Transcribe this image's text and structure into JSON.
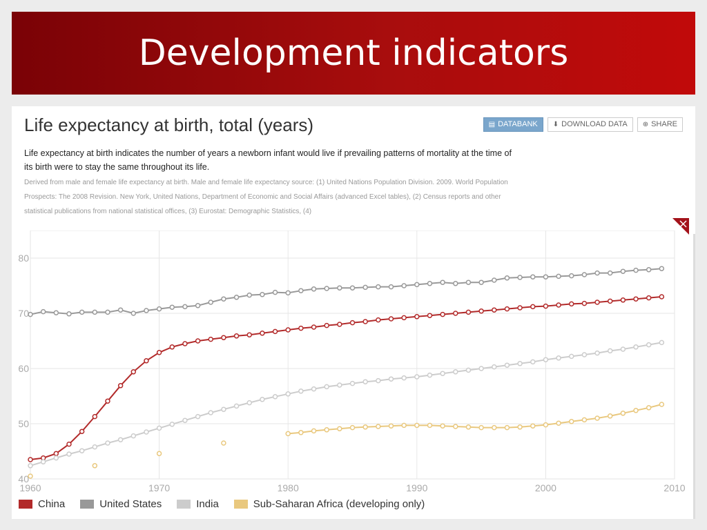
{
  "slide": {
    "title": "Development indicators"
  },
  "panel": {
    "title": "Life expectancy at birth, total (years)",
    "buttons": [
      {
        "label": "DATABANK",
        "icon": "chart-icon"
      },
      {
        "label": "DOWNLOAD DATA",
        "icon": "download-icon"
      },
      {
        "label": "SHARE",
        "icon": "plus-circle-icon"
      }
    ],
    "description": "Life expectancy at birth indicates the number of years a newborn infant would live if prevailing patterns of mortality at the time of its birth were to stay the same throughout its life.",
    "source": "Derived from male and female life expectancy at birth. Male and female life expectancy source: (1) United Nations Population Division. 2009. World Population Prospects: The 2008 Revision. New York, United Nations, Department of Economic and Social Affairs (advanced Excel tables), (2) Census reports and other statistical publications from national statistical offices, (3) Eurostat: Demographic Statistics, (4)"
  },
  "chart_data": {
    "type": "line",
    "title": "",
    "xlabel": "",
    "ylabel": "",
    "xlim": [
      1960,
      2010
    ],
    "ylim": [
      40,
      85
    ],
    "xticks": [
      1960,
      1970,
      1980,
      1990,
      2000,
      2010
    ],
    "yticks": [
      40,
      50,
      60,
      70,
      80
    ],
    "grid": true,
    "legend": "bottom",
    "series": [
      {
        "name": "China",
        "color": "#b22a2a",
        "points": [
          [
            1960,
            43.5
          ],
          [
            1961,
            43.8
          ],
          [
            1962,
            44.6
          ],
          [
            1963,
            46.3
          ],
          [
            1964,
            48.6
          ],
          [
            1965,
            51.3
          ],
          [
            1966,
            54.1
          ],
          [
            1967,
            56.9
          ],
          [
            1968,
            59.4
          ],
          [
            1969,
            61.4
          ],
          [
            1970,
            62.9
          ],
          [
            1971,
            63.9
          ],
          [
            1972,
            64.5
          ],
          [
            1973,
            65.0
          ],
          [
            1974,
            65.3
          ],
          [
            1975,
            65.6
          ],
          [
            1976,
            65.9
          ],
          [
            1977,
            66.1
          ],
          [
            1978,
            66.4
          ],
          [
            1979,
            66.7
          ],
          [
            1980,
            67.0
          ],
          [
            1981,
            67.3
          ],
          [
            1982,
            67.5
          ],
          [
            1983,
            67.8
          ],
          [
            1984,
            68.0
          ],
          [
            1985,
            68.3
          ],
          [
            1986,
            68.5
          ],
          [
            1987,
            68.8
          ],
          [
            1988,
            69.0
          ],
          [
            1989,
            69.2
          ],
          [
            1990,
            69.4
          ],
          [
            1991,
            69.6
          ],
          [
            1992,
            69.8
          ],
          [
            1993,
            70.0
          ],
          [
            1994,
            70.2
          ],
          [
            1995,
            70.4
          ],
          [
            1996,
            70.6
          ],
          [
            1997,
            70.8
          ],
          [
            1998,
            71.0
          ],
          [
            1999,
            71.2
          ],
          [
            2000,
            71.3
          ],
          [
            2001,
            71.5
          ],
          [
            2002,
            71.7
          ],
          [
            2003,
            71.8
          ],
          [
            2004,
            72.0
          ],
          [
            2005,
            72.2
          ],
          [
            2006,
            72.4
          ],
          [
            2007,
            72.6
          ],
          [
            2008,
            72.8
          ],
          [
            2009,
            73.0
          ]
        ]
      },
      {
        "name": "United States",
        "color": "#999999",
        "points": [
          [
            1960,
            69.8
          ],
          [
            1961,
            70.3
          ],
          [
            1962,
            70.1
          ],
          [
            1963,
            69.9
          ],
          [
            1964,
            70.2
          ],
          [
            1965,
            70.2
          ],
          [
            1966,
            70.2
          ],
          [
            1967,
            70.6
          ],
          [
            1968,
            70.0
          ],
          [
            1969,
            70.5
          ],
          [
            1970,
            70.8
          ],
          [
            1971,
            71.1
          ],
          [
            1972,
            71.2
          ],
          [
            1973,
            71.4
          ],
          [
            1974,
            72.0
          ],
          [
            1975,
            72.6
          ],
          [
            1976,
            72.9
          ],
          [
            1977,
            73.3
          ],
          [
            1978,
            73.4
          ],
          [
            1979,
            73.8
          ],
          [
            1980,
            73.7
          ],
          [
            1981,
            74.1
          ],
          [
            1982,
            74.4
          ],
          [
            1983,
            74.5
          ],
          [
            1984,
            74.6
          ],
          [
            1985,
            74.6
          ],
          [
            1986,
            74.7
          ],
          [
            1987,
            74.8
          ],
          [
            1988,
            74.8
          ],
          [
            1989,
            75.0
          ],
          [
            1990,
            75.2
          ],
          [
            1991,
            75.4
          ],
          [
            1992,
            75.6
          ],
          [
            1993,
            75.4
          ],
          [
            1994,
            75.6
          ],
          [
            1995,
            75.6
          ],
          [
            1996,
            76.0
          ],
          [
            1997,
            76.4
          ],
          [
            1998,
            76.5
          ],
          [
            1999,
            76.6
          ],
          [
            2000,
            76.6
          ],
          [
            2001,
            76.7
          ],
          [
            2002,
            76.8
          ],
          [
            2003,
            77.0
          ],
          [
            2004,
            77.3
          ],
          [
            2005,
            77.3
          ],
          [
            2006,
            77.6
          ],
          [
            2007,
            77.8
          ],
          [
            2008,
            77.9
          ],
          [
            2009,
            78.1
          ]
        ]
      },
      {
        "name": "India",
        "color": "#cccccc",
        "points": [
          [
            1960,
            42.4
          ],
          [
            1961,
            43.1
          ],
          [
            1962,
            43.8
          ],
          [
            1963,
            44.5
          ],
          [
            1964,
            45.1
          ],
          [
            1965,
            45.8
          ],
          [
            1966,
            46.5
          ],
          [
            1967,
            47.1
          ],
          [
            1968,
            47.8
          ],
          [
            1969,
            48.5
          ],
          [
            1970,
            49.2
          ],
          [
            1971,
            49.9
          ],
          [
            1972,
            50.6
          ],
          [
            1973,
            51.3
          ],
          [
            1974,
            52.0
          ],
          [
            1975,
            52.6
          ],
          [
            1976,
            53.2
          ],
          [
            1977,
            53.8
          ],
          [
            1978,
            54.4
          ],
          [
            1979,
            54.9
          ],
          [
            1980,
            55.4
          ],
          [
            1981,
            55.9
          ],
          [
            1982,
            56.3
          ],
          [
            1983,
            56.7
          ],
          [
            1984,
            57.0
          ],
          [
            1985,
            57.3
          ],
          [
            1986,
            57.6
          ],
          [
            1987,
            57.8
          ],
          [
            1988,
            58.1
          ],
          [
            1989,
            58.3
          ],
          [
            1990,
            58.5
          ],
          [
            1991,
            58.8
          ],
          [
            1992,
            59.1
          ],
          [
            1993,
            59.4
          ],
          [
            1994,
            59.7
          ],
          [
            1995,
            60.0
          ],
          [
            1996,
            60.3
          ],
          [
            1997,
            60.6
          ],
          [
            1998,
            60.9
          ],
          [
            1999,
            61.2
          ],
          [
            2000,
            61.6
          ],
          [
            2001,
            61.9
          ],
          [
            2002,
            62.2
          ],
          [
            2003,
            62.5
          ],
          [
            2004,
            62.8
          ],
          [
            2005,
            63.2
          ],
          [
            2006,
            63.5
          ],
          [
            2007,
            63.9
          ],
          [
            2008,
            64.3
          ],
          [
            2009,
            64.7
          ]
        ]
      },
      {
        "name": "Sub-Saharan Africa (developing only)",
        "color": "#e9c87e",
        "isolated": [
          [
            1960,
            40.5
          ],
          [
            1965,
            42.4
          ],
          [
            1970,
            44.6
          ],
          [
            1975,
            46.5
          ]
        ],
        "points": [
          [
            1980,
            48.2
          ],
          [
            1981,
            48.4
          ],
          [
            1982,
            48.7
          ],
          [
            1983,
            48.9
          ],
          [
            1984,
            49.1
          ],
          [
            1985,
            49.3
          ],
          [
            1986,
            49.4
          ],
          [
            1987,
            49.5
          ],
          [
            1988,
            49.6
          ],
          [
            1989,
            49.7
          ],
          [
            1990,
            49.7
          ],
          [
            1991,
            49.7
          ],
          [
            1992,
            49.6
          ],
          [
            1993,
            49.5
          ],
          [
            1994,
            49.4
          ],
          [
            1995,
            49.3
          ],
          [
            1996,
            49.3
          ],
          [
            1997,
            49.3
          ],
          [
            1998,
            49.4
          ],
          [
            1999,
            49.6
          ],
          [
            2000,
            49.8
          ],
          [
            2001,
            50.1
          ],
          [
            2002,
            50.4
          ],
          [
            2003,
            50.7
          ],
          [
            2004,
            51.0
          ],
          [
            2005,
            51.4
          ],
          [
            2006,
            51.9
          ],
          [
            2007,
            52.4
          ],
          [
            2008,
            52.9
          ],
          [
            2009,
            53.5
          ]
        ]
      }
    ]
  }
}
